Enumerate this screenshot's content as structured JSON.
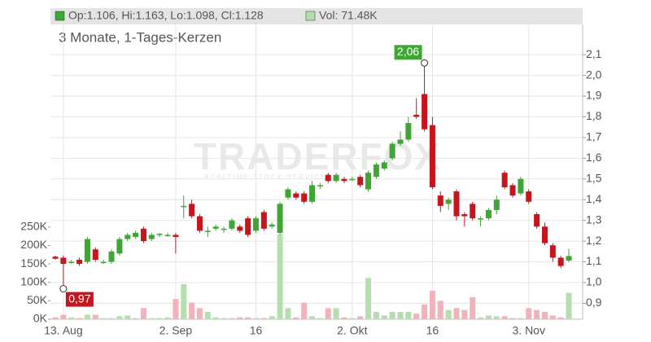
{
  "chart_data": {
    "type": "candlestick",
    "header_ohlc": "Op:1.106, Hi:1.163, Lo:1.098, Cl:1.128",
    "header_volume": "Vol: 71.48K",
    "subtitle": "3 Monate, 1-Tages-Kerzen",
    "watermark": "TRADERFOX",
    "watermark_sub": "REALTIME STOCK SERVICES",
    "high_label": "2,06",
    "low_label": "0,97",
    "categories": [
      null,
      "13. Aug",
      null,
      null,
      null,
      null,
      null,
      null,
      null,
      null,
      null,
      null,
      null,
      null,
      null,
      "2. Sep",
      null,
      null,
      null,
      null,
      null,
      null,
      null,
      null,
      null,
      "16",
      null,
      null,
      null,
      null,
      null,
      null,
      null,
      null,
      null,
      null,
      null,
      "2. Okt",
      null,
      null,
      null,
      null,
      null,
      null,
      null,
      null,
      null,
      "16",
      null,
      null,
      null,
      null,
      null,
      null,
      null,
      null,
      null,
      null,
      null,
      "3. Nov",
      null,
      null,
      null,
      null,
      null
    ],
    "open": [
      1.125,
      1.12,
      1.1,
      1.11,
      1.1,
      1.16,
      1.1,
      1.1,
      1.14,
      1.21,
      1.22,
      1.26,
      1.21,
      1.23,
      1.23,
      1.23,
      1.37,
      1.38,
      1.32,
      1.25,
      1.26,
      1.26,
      1.26,
      1.27,
      1.31,
      1.25,
      1.34,
      1.27,
      1.24,
      1.41,
      1.43,
      1.43,
      1.39,
      1.47,
      1.52,
      1.49,
      1.5,
      1.5,
      1.51,
      1.45,
      1.51,
      1.55,
      1.6,
      1.67,
      1.69,
      1.81,
      1.91,
      1.76,
      1.42,
      1.38,
      1.44,
      1.33,
      1.38,
      1.31,
      1.31,
      1.35,
      1.53,
      1.47,
      1.43,
      1.44,
      1.33,
      1.27,
      1.18,
      1.12,
      1.106
    ],
    "high": [
      1.13,
      1.13,
      1.11,
      1.12,
      1.22,
      1.17,
      1.11,
      1.16,
      1.22,
      1.24,
      1.25,
      1.27,
      1.24,
      1.24,
      1.24,
      1.24,
      1.42,
      1.4,
      1.33,
      1.27,
      1.28,
      1.27,
      1.31,
      1.28,
      1.32,
      1.32,
      1.35,
      1.29,
      1.39,
      1.46,
      1.44,
      1.44,
      1.49,
      1.48,
      1.53,
      1.53,
      1.51,
      1.51,
      1.52,
      1.54,
      1.58,
      1.59,
      1.68,
      1.73,
      1.8,
      1.89,
      2.06,
      1.8,
      1.44,
      1.41,
      1.45,
      1.34,
      1.39,
      1.32,
      1.36,
      1.42,
      1.54,
      1.48,
      1.51,
      1.45,
      1.34,
      1.29,
      1.19,
      1.13,
      1.163
    ],
    "low": [
      1.11,
      0.97,
      1.09,
      1.08,
      1.09,
      1.1,
      1.09,
      1.09,
      1.13,
      1.2,
      1.21,
      1.19,
      1.2,
      1.22,
      1.22,
      1.14,
      1.31,
      1.31,
      1.24,
      1.22,
      1.25,
      1.24,
      1.25,
      1.24,
      1.22,
      1.24,
      1.25,
      1.26,
      1.23,
      1.4,
      1.4,
      1.38,
      1.38,
      1.45,
      1.48,
      1.48,
      1.48,
      1.49,
      1.46,
      1.44,
      1.5,
      1.54,
      1.59,
      1.66,
      1.68,
      1.79,
      1.73,
      1.45,
      1.34,
      1.35,
      1.3,
      1.27,
      1.3,
      1.27,
      1.3,
      1.33,
      1.45,
      1.41,
      1.42,
      1.38,
      1.26,
      1.18,
      1.1,
      1.07,
      1.098
    ],
    "close": [
      1.115,
      1.09,
      1.1,
      1.09,
      1.21,
      1.11,
      1.1,
      1.15,
      1.21,
      1.23,
      1.24,
      1.2,
      1.23,
      1.235,
      1.23,
      1.22,
      1.37,
      1.32,
      1.25,
      1.25,
      1.27,
      1.26,
      1.3,
      1.25,
      1.23,
      1.31,
      1.26,
      1.28,
      1.38,
      1.45,
      1.41,
      1.39,
      1.47,
      1.47,
      1.49,
      1.52,
      1.49,
      1.5,
      1.47,
      1.53,
      1.57,
      1.58,
      1.67,
      1.69,
      1.77,
      1.8,
      1.74,
      1.46,
      1.37,
      1.4,
      1.32,
      1.32,
      1.31,
      1.31,
      1.35,
      1.4,
      1.46,
      1.42,
      1.5,
      1.39,
      1.27,
      1.19,
      1.12,
      1.08,
      1.128
    ],
    "volume": [
      5000,
      12000,
      5000,
      3000,
      12000,
      12000,
      3000,
      3000,
      8000,
      10000,
      3000,
      30000,
      3000,
      3000,
      5000,
      55000,
      95000,
      45000,
      30000,
      20000,
      5000,
      3000,
      3000,
      5000,
      5000,
      3000,
      3000,
      8000,
      230000,
      30000,
      5000,
      45000,
      8000,
      3000,
      30000,
      30000,
      5000,
      3000,
      8000,
      112000,
      20000,
      10000,
      20000,
      20000,
      20000,
      15000,
      40000,
      77000,
      50000,
      25000,
      30000,
      25000,
      60000,
      5000,
      10000,
      8000,
      8000,
      3000,
      3000,
      30000,
      25000,
      20000,
      10000,
      5000,
      71480
    ],
    "up_color": "#3fa535",
    "down_color": "#c4161c",
    "volume_up_color": "#b5deaf",
    "volume_down_color": "#f0b3ba",
    "ylim": [
      0.823,
      2.246
    ],
    "yticks": [
      {
        "value": 0.9,
        "label": "0,9"
      },
      {
        "value": 1.0,
        "label": "1,0"
      },
      {
        "value": 1.1,
        "label": "1,1"
      },
      {
        "value": 1.2,
        "label": "1,2"
      },
      {
        "value": 1.3,
        "label": "1,3"
      },
      {
        "value": 1.4,
        "label": "1,4"
      },
      {
        "value": 1.5,
        "label": "1,5"
      },
      {
        "value": 1.6,
        "label": "1,6"
      },
      {
        "value": 1.7,
        "label": "1,7"
      },
      {
        "value": 1.8,
        "label": "1,8"
      },
      {
        "value": 1.9,
        "label": "1,9"
      },
      {
        "value": 2.0,
        "label": "2,0"
      },
      {
        "value": 2.1,
        "label": "2,1"
      }
    ],
    "y2lim": [
      0,
      800000
    ],
    "y2ticks": [
      {
        "value": 0,
        "label": "0K"
      },
      {
        "value": 50000,
        "label": "50K"
      },
      {
        "value": 100000,
        "label": "100K"
      },
      {
        "value": 150000,
        "label": "150K"
      },
      {
        "value": 200000,
        "label": "200K"
      },
      {
        "value": 250000,
        "label": "250K"
      }
    ],
    "grid": true
  }
}
